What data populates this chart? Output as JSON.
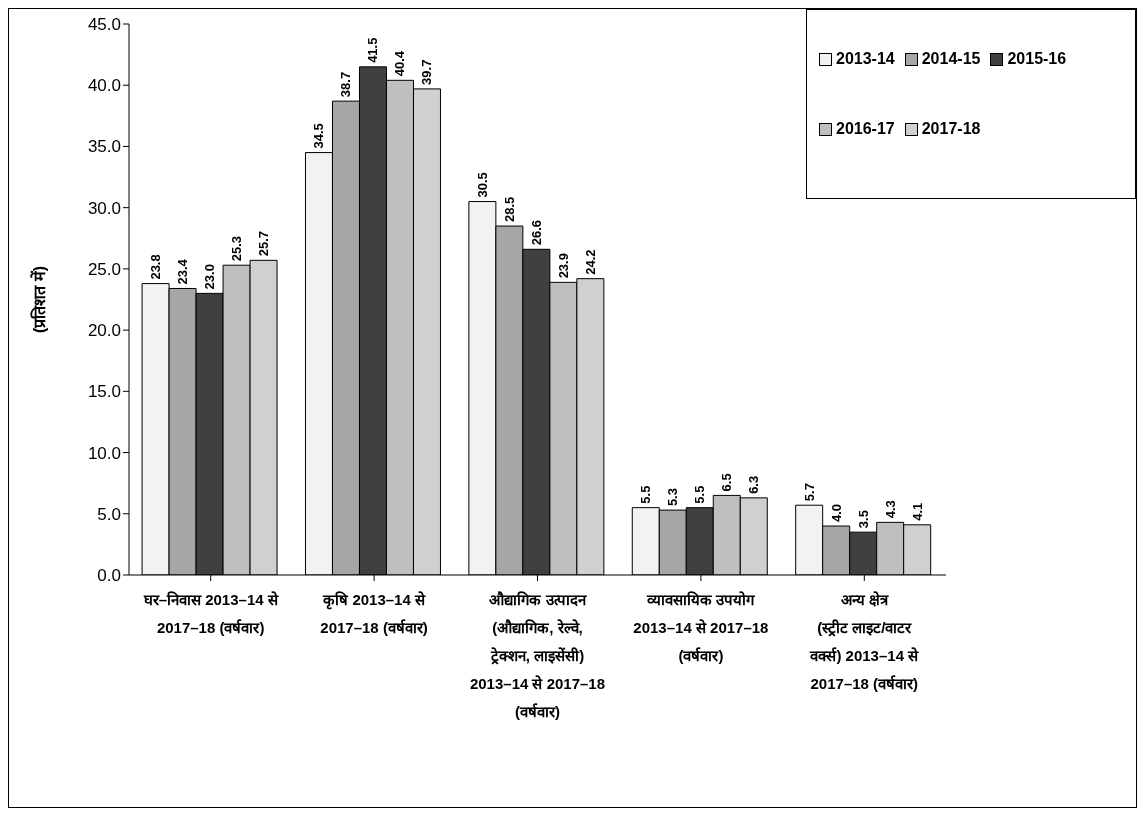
{
  "chart_data": {
    "type": "bar",
    "ylabel": "(प्रतिशत में)",
    "categories": [
      "घर–निवास 2013–14 से 2017–18 (वर्षवार)",
      "कृषि 2013–14 से 2017–18 (वर्षवार)",
      "औद्यागिक उत्पादन (औद्यागिक, रेल्वे, ट्रेक्शन, लाइसेंसी) 2013–14 से 2017–18 (वर्षवार)",
      "व्यावसायिक उपयोग 2013–14 से 2017–18 (वर्षवार)",
      "अन्य क्षेत्र (स्ट्रीट लाइट/वाटर वर्क्स) 2013–14 से 2017–18 (वर्षवार)"
    ],
    "series": [
      {
        "name": "2013-14",
        "color": "#f2f2f2",
        "values": [
          23.8,
          34.5,
          30.5,
          5.5,
          5.7
        ],
        "value_labels": [
          "23.8",
          "34.5",
          "30.5",
          "5.5",
          "5.7"
        ]
      },
      {
        "name": "2014-15",
        "color": "#a6a6a6",
        "values": [
          23.4,
          38.7,
          28.5,
          5.3,
          4.0
        ],
        "value_labels": [
          "23.4",
          "38.7",
          "28.5",
          "5.3",
          "4.0"
        ]
      },
      {
        "name": "2015-16",
        "color": "#404040",
        "values": [
          23.0,
          41.5,
          26.6,
          5.5,
          3.5
        ],
        "value_labels": [
          "23.0",
          "41.5",
          "26.6",
          "5.5",
          "3.5"
        ]
      },
      {
        "name": "2016-17",
        "color": "#bfbfbf",
        "values": [
          25.3,
          40.4,
          23.9,
          6.5,
          4.3
        ],
        "value_labels": [
          "25.3",
          "40.4",
          "23.9",
          "6.5",
          "4.3"
        ]
      },
      {
        "name": "2017-18",
        "color": "#d0d0d0",
        "values": [
          25.7,
          39.7,
          24.2,
          6.3,
          4.1
        ],
        "value_labels": [
          "25.7",
          "39.7",
          "24.2",
          "6.3",
          "4.1"
        ]
      }
    ],
    "ylim": [
      0,
      45
    ],
    "yticks": [
      {
        "value": 0,
        "label": "0.0"
      },
      {
        "value": 5,
        "label": "5.0"
      },
      {
        "value": 10,
        "label": "10.0"
      },
      {
        "value": 15,
        "label": "15.0"
      },
      {
        "value": 20,
        "label": "20.0"
      },
      {
        "value": 25,
        "label": "25.0"
      },
      {
        "value": 30,
        "label": "30.0"
      },
      {
        "value": 35,
        "label": "35.0"
      },
      {
        "value": 40,
        "label": "40.0"
      },
      {
        "value": 45,
        "label": "45.0"
      }
    ],
    "grid": false,
    "legend": "top right"
  }
}
